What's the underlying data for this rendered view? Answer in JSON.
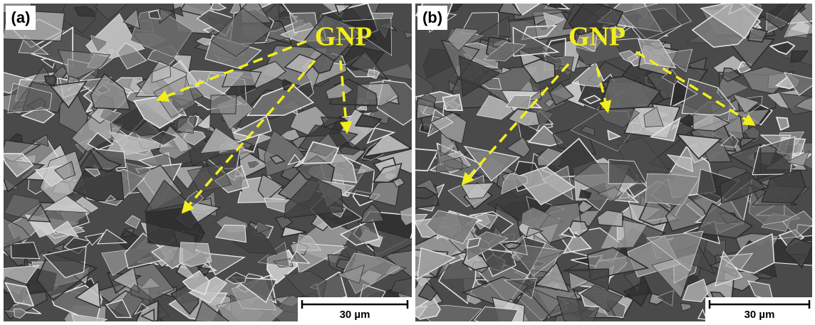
{
  "panels": [
    {
      "label": "(a)",
      "annotation": "GNP",
      "scale_bar": "30 µm"
    },
    {
      "label": "(b)",
      "annotation": "GNP",
      "scale_bar": "30 µm"
    }
  ]
}
